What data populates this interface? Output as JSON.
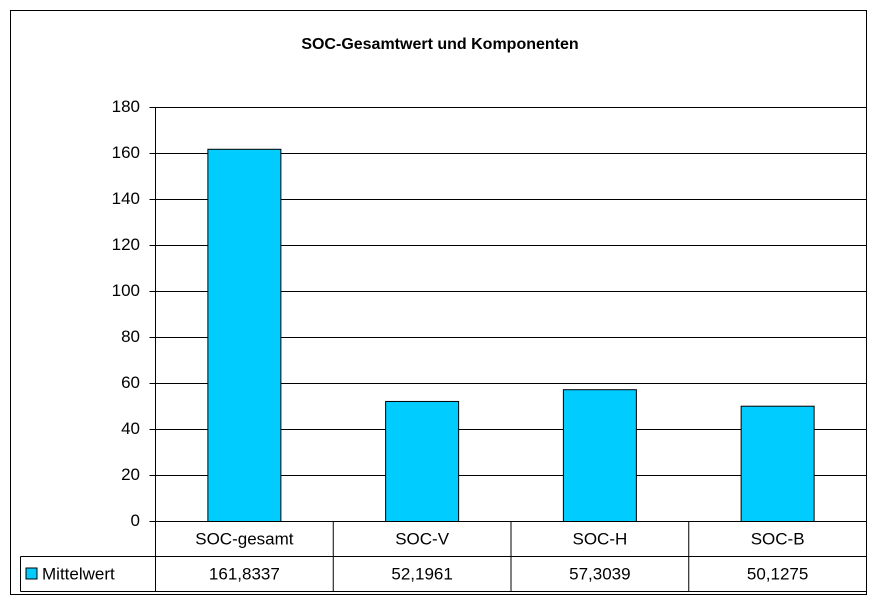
{
  "chart_data": {
    "type": "bar",
    "title": "SOC-Gesamtwert und Komponenten",
    "categories": [
      "SOC-gesamt",
      "SOC-V",
      "SOC-H",
      "SOC-B"
    ],
    "series": [
      {
        "name": "Mittelwert",
        "color": "#00CCFF",
        "values": [
          161.8337,
          52.1961,
          57.3039,
          50.1275
        ],
        "value_labels": [
          "161,8337",
          "52,1961",
          "57,3039",
          "50,1275"
        ]
      }
    ],
    "ylim": [
      0,
      180
    ],
    "yticks": [
      0,
      20,
      40,
      60,
      80,
      100,
      120,
      140,
      160,
      180
    ],
    "grid": true
  }
}
